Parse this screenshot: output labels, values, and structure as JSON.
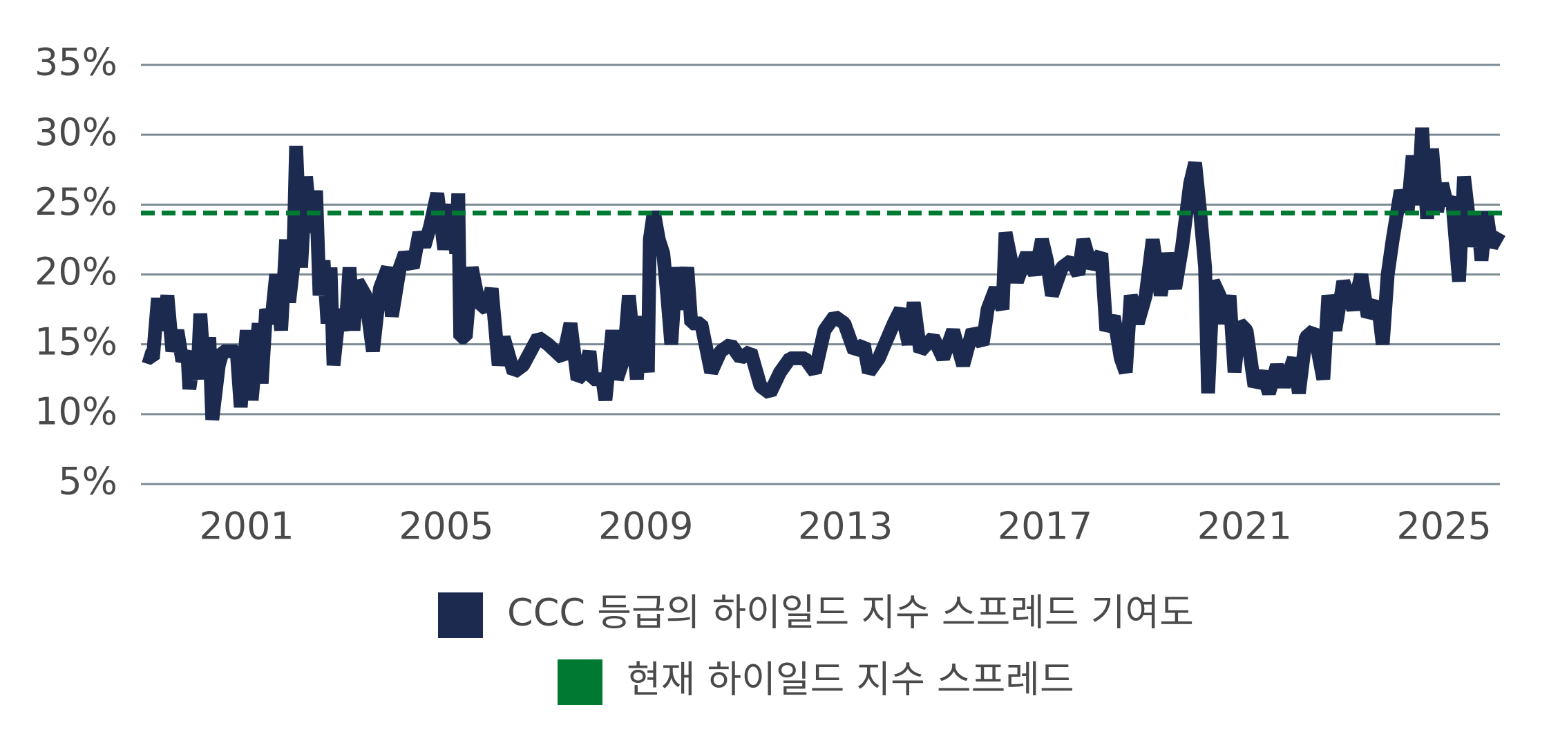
{
  "chart_data": {
    "type": "line",
    "x": [
      1998.94,
      1999.12,
      1999.22,
      1999.32,
      1999.41,
      1999.51,
      1999.61,
      1999.71,
      1999.81,
      1999.85,
      1999.95,
      2000.01,
      2000.07,
      2000.15,
      2000.25,
      2000.31,
      2000.44,
      2000.52,
      2000.8,
      2000.88,
      2001.0,
      2001.1,
      2001.24,
      2001.3,
      2001.39,
      2001.49,
      2001.59,
      2001.69,
      2001.79,
      2001.85,
      2001.93,
      2001.99,
      2002.09,
      2002.19,
      2002.29,
      2002.39,
      2002.46,
      2002.54,
      2002.62,
      2002.68,
      2002.74,
      2002.86,
      2002.98,
      2003.06,
      2003.14,
      2003.22,
      2003.38,
      2003.53,
      2003.67,
      2003.83,
      2003.91,
      2004.07,
      2004.17,
      2004.33,
      2004.46,
      2004.56,
      2004.68,
      2004.82,
      2004.96,
      2005.1,
      2005.2,
      2005.24,
      2005.28,
      2005.39,
      2005.51,
      2005.65,
      2005.81,
      2005.91,
      2006.05,
      2006.15,
      2006.35,
      2006.54,
      2006.84,
      2007.04,
      2007.34,
      2007.49,
      2007.63,
      2007.77,
      2007.87,
      2007.93,
      2008.13,
      2008.19,
      2008.33,
      2008.42,
      2008.56,
      2008.66,
      2008.82,
      2008.92,
      2009.04,
      2009.08,
      2009.16,
      2009.26,
      2009.35,
      2009.43,
      2009.51,
      2009.61,
      2009.71,
      2009.83,
      2009.91,
      2010.11,
      2010.31,
      2010.5,
      2010.7,
      2010.9,
      2011.1,
      2011.3,
      2011.49,
      2011.69,
      2011.89,
      2012.19,
      2012.39,
      2012.58,
      2012.78,
      2012.98,
      2013.18,
      2013.37,
      2013.47,
      2013.67,
      2013.97,
      2014.11,
      2014.27,
      2014.37,
      2014.5,
      2014.76,
      2014.96,
      2015.16,
      2015.36,
      2015.55,
      2015.75,
      2015.85,
      2016.01,
      2016.15,
      2016.21,
      2016.35,
      2016.44,
      2016.64,
      2016.8,
      2016.94,
      2017.04,
      2017.14,
      2017.34,
      2017.53,
      2017.67,
      2017.77,
      2017.93,
      2018.13,
      2018.23,
      2018.38,
      2018.52,
      2018.62,
      2018.72,
      2018.86,
      2019.02,
      2019.16,
      2019.32,
      2019.45,
      2019.61,
      2019.75,
      2019.91,
      2020.01,
      2020.11,
      2020.21,
      2020.27,
      2020.37,
      2020.5,
      2020.6,
      2020.7,
      2020.8,
      2020.9,
      2021.04,
      2021.2,
      2021.36,
      2021.49,
      2021.65,
      2021.79,
      2021.99,
      2022.09,
      2022.23,
      2022.39,
      2022.58,
      2022.68,
      2022.82,
      2022.98,
      2023.18,
      2023.34,
      2023.47,
      2023.67,
      2023.77,
      2023.87,
      2023.97,
      2024.13,
      2024.27,
      2024.37,
      2024.48,
      2024.56,
      2024.66,
      2024.76,
      2024.86,
      2024.96,
      2025.06,
      2025.16,
      2025.3,
      2025.4,
      2025.56,
      2025.66,
      2025.75,
      2025.85,
      2025.95,
      2026.11
    ],
    "series": [
      {
        "name": "CCC 등급의 하이일드 지수 스프레드 기여도",
        "color": "#1b2a4e",
        "values": [
          14.2,
          14.0,
          18.3,
          16,
          18.5,
          14.5,
          16,
          13.8,
          14.5,
          11.8,
          14.2,
          12.5,
          17.2,
          13,
          15.5,
          9.6,
          13.5,
          14.5,
          14.5,
          10.5,
          16,
          11,
          16.5,
          12.2,
          17.5,
          16.5,
          20,
          16,
          22.5,
          18,
          20.5,
          29.2,
          20.5,
          27,
          23,
          26,
          18.5,
          21,
          16.5,
          20.5,
          13.5,
          17.5,
          16,
          20.5,
          16,
          19.5,
          18.5,
          14.5,
          19,
          20.5,
          17,
          20.5,
          21.5,
          20.5,
          23,
          22,
          23.5,
          25.8,
          21.8,
          25,
          21.5,
          25.8,
          15.5,
          15.5,
          20.5,
          18,
          17.5,
          19,
          13.5,
          15.5,
          13,
          13.5,
          15.5,
          15,
          14,
          16.5,
          12.5,
          13,
          14.5,
          12.5,
          12.5,
          11,
          16,
          12.5,
          14,
          18.5,
          12.5,
          17,
          13,
          22.5,
          24.5,
          22.5,
          21.5,
          18.5,
          15,
          20.5,
          17.5,
          20.5,
          16.5,
          16.5,
          13,
          14.5,
          15,
          14,
          14.5,
          12,
          11.5,
          13,
          14,
          14,
          13,
          16,
          17,
          16.5,
          14.5,
          15,
          13,
          14,
          16.5,
          17.5,
          15,
          18,
          14.5,
          15.5,
          14,
          16,
          13.5,
          16,
          15,
          17.5,
          19,
          17.5,
          23,
          20.5,
          19.5,
          21.5,
          20,
          22.5,
          21,
          18.5,
          20.5,
          21,
          20,
          22.5,
          20.5,
          21.5,
          16,
          17,
          14,
          13,
          18.5,
          16.5,
          18.5,
          22.5,
          18.5,
          21.5,
          19,
          22,
          26.5,
          28,
          24.5,
          20.5,
          11.5,
          19.5,
          18.5,
          16.5,
          18.5,
          13,
          16.5,
          16,
          12,
          13,
          11.5,
          13.5,
          12,
          14,
          11.5,
          15.5,
          16,
          12.5,
          18.5,
          16,
          19.5,
          17.5,
          20,
          17,
          18,
          15,
          20,
          22.5,
          26,
          24.5,
          28.5,
          25,
          30.5,
          24,
          29,
          24.5,
          26.5,
          25,
          25.5,
          19.5,
          27,
          22,
          24.5,
          21,
          24.5,
          22,
          23
        ]
      },
      {
        "name": "현재 하이일드 지수 스프레드",
        "color": "#007a33",
        "reference": 24.4
      }
    ],
    "xlim": [
      1998.88,
      2026.12
    ],
    "xticks": [
      2001,
      2005,
      2009,
      2013,
      2017,
      2021,
      2025
    ],
    "ylim": [
      5,
      35
    ],
    "yticks": [
      {
        "value": 5,
        "label": "5%"
      },
      {
        "value": 10,
        "label": "10%"
      },
      {
        "value": 15,
        "label": "15%"
      },
      {
        "value": 20,
        "label": "20%"
      },
      {
        "value": 25,
        "label": "25%"
      },
      {
        "value": 30,
        "label": "30%"
      },
      {
        "value": 35,
        "label": "35%"
      }
    ],
    "grid": true
  }
}
